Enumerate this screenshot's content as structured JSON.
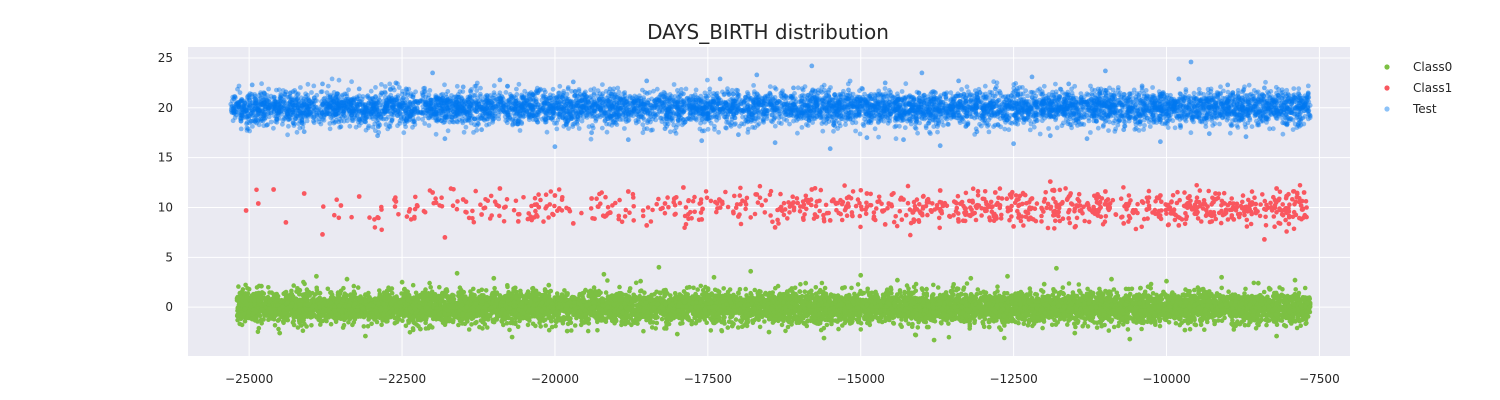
{
  "chart_data": {
    "type": "scatter",
    "title": "DAYS_BIRTH distribution",
    "xlabel": "",
    "ylabel": "",
    "xlim": [
      -26000,
      -7000
    ],
    "ylim": [
      -4.9,
      26.1
    ],
    "x_ticks": [
      -25000,
      -22500,
      -20000,
      -17500,
      -15000,
      -12500,
      -10000,
      -7500
    ],
    "x_tick_labels": [
      "−25000",
      "−22500",
      "−20000",
      "−17500",
      "−15000",
      "−12500",
      "−10000",
      "−7500"
    ],
    "y_ticks": [
      0,
      5,
      10,
      15,
      20,
      25
    ],
    "y_tick_labels": [
      "0",
      "5",
      "10",
      "15",
      "20",
      "25"
    ],
    "grid": true,
    "background": "#eaeaf2",
    "legend_position": "upper-right-outside",
    "series": [
      {
        "name": "Class0",
        "color": "#7cc043",
        "opacity": 1.0,
        "y_center": 0,
        "y_spread_sd": 0.9,
        "x_range": [
          -25200,
          -7650
        ],
        "points": [
          [
            -25100,
            0.8
          ],
          [
            -24950,
            -1.2
          ],
          [
            -24800,
            2.1
          ],
          [
            -24500,
            -2.6
          ],
          [
            -24200,
            1.5
          ],
          [
            -23900,
            3.1
          ],
          [
            -23600,
            -0.4
          ],
          [
            -23400,
            2.8
          ],
          [
            -23100,
            -2.9
          ],
          [
            -22800,
            0.3
          ],
          [
            -22500,
            2.5
          ],
          [
            -22200,
            -2.2
          ],
          [
            -21900,
            1.1
          ],
          [
            -21600,
            3.4
          ],
          [
            -21300,
            -1.6
          ],
          [
            -21000,
            2.9
          ],
          [
            -20700,
            -3.0
          ],
          [
            -20400,
            0.6
          ],
          [
            -20100,
            2.2
          ],
          [
            -19800,
            -2.4
          ],
          [
            -19500,
            1.7
          ],
          [
            -19200,
            3.3
          ],
          [
            -18900,
            -1.1
          ],
          [
            -18600,
            2.6
          ],
          [
            -18300,
            4.0
          ],
          [
            -18000,
            -2.7
          ],
          [
            -17700,
            1.3
          ],
          [
            -17400,
            3.0
          ],
          [
            -17100,
            -1.9
          ],
          [
            -16800,
            3.6
          ],
          [
            -16500,
            -2.5
          ],
          [
            -16200,
            0.9
          ],
          [
            -15900,
            2.4
          ],
          [
            -15600,
            -3.1
          ],
          [
            -15300,
            1.9
          ],
          [
            -15000,
            3.2
          ],
          [
            -14700,
            -1.4
          ],
          [
            -14400,
            2.7
          ],
          [
            -14100,
            -2.8
          ],
          [
            -13800,
            -3.3
          ],
          [
            -13500,
            1.6
          ],
          [
            -13200,
            2.9
          ],
          [
            -12900,
            -2.0
          ],
          [
            -12600,
            3.1
          ],
          [
            -12300,
            -0.7
          ],
          [
            -12000,
            2.3
          ],
          [
            -11800,
            3.9
          ],
          [
            -11500,
            -2.6
          ],
          [
            -11200,
            1.4
          ],
          [
            -10900,
            2.8
          ],
          [
            -10600,
            -3.2
          ],
          [
            -10300,
            0.5
          ],
          [
            -10000,
            2.6
          ],
          [
            -9700,
            -2.3
          ],
          [
            -9400,
            1.8
          ],
          [
            -9100,
            3.0
          ],
          [
            -8800,
            -1.7
          ],
          [
            -8500,
            2.4
          ],
          [
            -8200,
            -2.9
          ],
          [
            -7900,
            2.7
          ],
          [
            -7750,
            -1.0
          ],
          [
            -7700,
            0.4
          ]
        ]
      },
      {
        "name": "Class1",
        "color": "#f9575f",
        "opacity": 1.0,
        "y_center": 10,
        "y_spread_sd": 1.0,
        "x_range": [
          -25100,
          -7700
        ],
        "points": [
          [
            -25050,
            9.7
          ],
          [
            -24850,
            10.4
          ],
          [
            -24600,
            11.8
          ],
          [
            -24400,
            8.5
          ],
          [
            -24100,
            11.4
          ],
          [
            -23800,
            7.3
          ],
          [
            -23500,
            10.2
          ],
          [
            -23200,
            11.1
          ],
          [
            -22900,
            9.0
          ],
          [
            -22600,
            10.6
          ],
          [
            -22300,
            8.9
          ],
          [
            -22000,
            11.5
          ],
          [
            -21800,
            7.0
          ],
          [
            -21500,
            10.8
          ],
          [
            -21200,
            9.3
          ],
          [
            -20900,
            11.9
          ],
          [
            -20600,
            8.6
          ],
          [
            -20300,
            10.3
          ],
          [
            -20000,
            11.2
          ],
          [
            -19700,
            8.4
          ],
          [
            -19400,
            10.9
          ],
          [
            -19100,
            9.5
          ],
          [
            -18800,
            11.6
          ],
          [
            -18500,
            8.2
          ],
          [
            -18200,
            10.4
          ],
          [
            -17900,
            12.0
          ],
          [
            -17600,
            8.8
          ],
          [
            -17300,
            10.7
          ],
          [
            -17000,
            9.1
          ],
          [
            -16700,
            11.3
          ],
          [
            -16400,
            8.0
          ],
          [
            -16100,
            10.5
          ],
          [
            -15800,
            11.8
          ],
          [
            -15500,
            8.7
          ],
          [
            -15200,
            10.1
          ],
          [
            -14900,
            11.4
          ],
          [
            -14600,
            8.3
          ],
          [
            -14300,
            10.8
          ],
          [
            -14000,
            9.4
          ],
          [
            -13700,
            11.7
          ],
          [
            -13400,
            8.6
          ],
          [
            -13100,
            10.2
          ],
          [
            -12800,
            11.5
          ],
          [
            -12500,
            8.1
          ],
          [
            -12200,
            10.9
          ],
          [
            -11900,
            12.6
          ],
          [
            -11600,
            8.9
          ],
          [
            -11300,
            10.3
          ],
          [
            -11000,
            11.6
          ],
          [
            -10700,
            8.4
          ],
          [
            -10400,
            10.6
          ],
          [
            -10100,
            11.2
          ],
          [
            -9800,
            8.2
          ],
          [
            -9500,
            10.0
          ],
          [
            -9200,
            11.4
          ],
          [
            -8900,
            8.8
          ],
          [
            -8600,
            10.5
          ],
          [
            -8400,
            6.8
          ],
          [
            -8200,
            11.9
          ],
          [
            -8000,
            9.6
          ],
          [
            -7800,
            10.2
          ],
          [
            -7750,
            11.5
          ]
        ]
      },
      {
        "name": "Test",
        "color": "#0077ef",
        "opacity": 0.45,
        "y_center": 20,
        "y_spread_sd": 1.0,
        "x_range": [
          -25300,
          -7650
        ],
        "points": [
          [
            -25250,
            20.9
          ],
          [
            -25150,
            20.2
          ],
          [
            -24950,
            22.3
          ],
          [
            -24700,
            18.3
          ],
          [
            -24400,
            21.6
          ],
          [
            -24100,
            17.6
          ],
          [
            -23800,
            22.4
          ],
          [
            -23500,
            18.1
          ],
          [
            -23200,
            21.9
          ],
          [
            -22900,
            17.2
          ],
          [
            -22600,
            22.5
          ],
          [
            -22300,
            18.6
          ],
          [
            -22000,
            23.5
          ],
          [
            -21800,
            16.9
          ],
          [
            -21500,
            22.1
          ],
          [
            -21200,
            17.8
          ],
          [
            -20900,
            22.8
          ],
          [
            -20600,
            18.4
          ],
          [
            -20300,
            21.7
          ],
          [
            -20000,
            16.1
          ],
          [
            -19700,
            22.6
          ],
          [
            -19400,
            17.5
          ],
          [
            -19100,
            21.9
          ],
          [
            -18800,
            16.8
          ],
          [
            -18500,
            22.7
          ],
          [
            -18200,
            17.9
          ],
          [
            -17900,
            21.4
          ],
          [
            -17600,
            16.7
          ],
          [
            -17300,
            22.9
          ],
          [
            -17000,
            17.3
          ],
          [
            -16700,
            23.3
          ],
          [
            -16400,
            16.5
          ],
          [
            -16100,
            22.0
          ],
          [
            -15800,
            24.2
          ],
          [
            -15500,
            15.9
          ],
          [
            -15200,
            21.8
          ],
          [
            -14900,
            17.0
          ],
          [
            -14600,
            22.5
          ],
          [
            -14300,
            16.8
          ],
          [
            -14000,
            23.5
          ],
          [
            -13700,
            16.2
          ],
          [
            -13400,
            22.7
          ],
          [
            -13100,
            17.6
          ],
          [
            -12800,
            21.9
          ],
          [
            -12500,
            16.4
          ],
          [
            -12200,
            23.1
          ],
          [
            -11900,
            17.2
          ],
          [
            -11600,
            22.4
          ],
          [
            -11300,
            16.9
          ],
          [
            -11000,
            23.7
          ],
          [
            -10700,
            17.8
          ],
          [
            -10400,
            22.2
          ],
          [
            -10100,
            16.6
          ],
          [
            -9800,
            22.9
          ],
          [
            -9600,
            24.6
          ],
          [
            -9300,
            17.4
          ],
          [
            -9000,
            22.3
          ],
          [
            -8700,
            17.1
          ],
          [
            -8400,
            22.0
          ],
          [
            -8100,
            18.5
          ],
          [
            -7900,
            21.0
          ],
          [
            -7800,
            18.9
          ],
          [
            -7650,
            19.2
          ]
        ]
      }
    ]
  }
}
